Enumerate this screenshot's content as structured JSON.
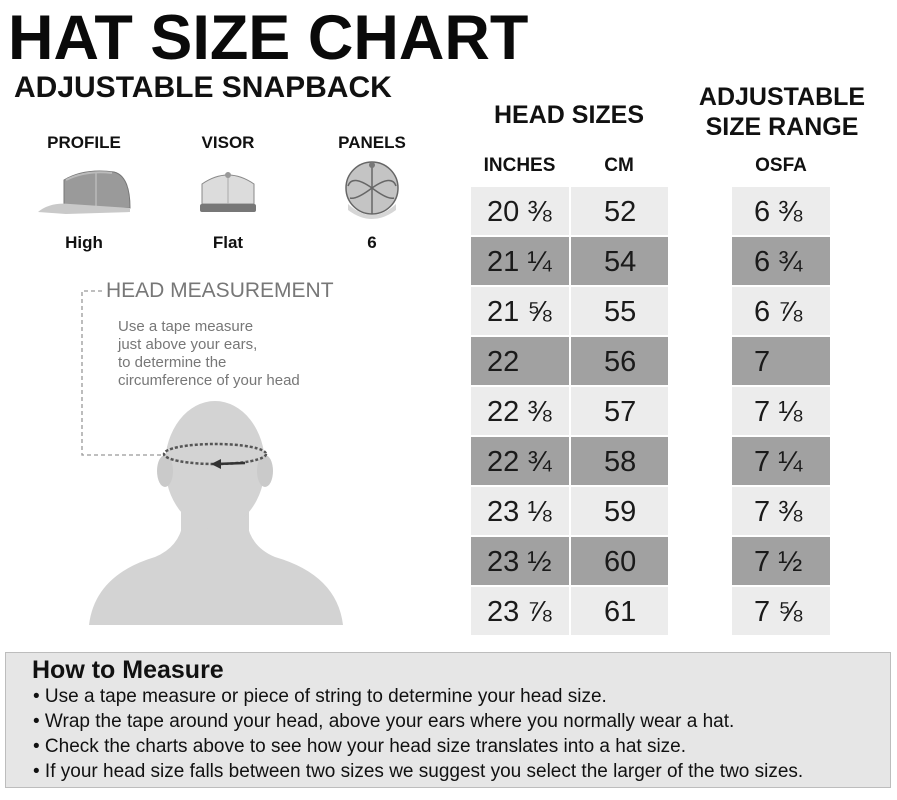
{
  "title": "HAT SIZE CHART",
  "subtitle": "ADJUSTABLE SNAPBACK",
  "features": [
    {
      "label": "PROFILE",
      "value": "High",
      "icon": "high-profile-cap-icon"
    },
    {
      "label": "VISOR",
      "value": "Flat",
      "icon": "flat-visor-cap-icon"
    },
    {
      "label": "PANELS",
      "value": "6",
      "icon": "six-panel-cap-icon"
    }
  ],
  "head_measurement": {
    "label": "HEAD MEASUREMENT",
    "description_lines": [
      "Use a tape measure",
      "just above your ears,",
      "to determine the",
      "circumference of your head"
    ]
  },
  "table": {
    "head_sizes_title": "HEAD SIZES",
    "range_title_line1": "ADJUSTABLE",
    "range_title_line2": "SIZE RANGE",
    "col_inches": "INCHES",
    "col_cm": "CM",
    "col_osfa": "OSFA",
    "rows": [
      {
        "inches": "20 ⅜",
        "cm": "52",
        "osfa": "6 ⅜"
      },
      {
        "inches": "21 ¼",
        "cm": "54",
        "osfa": "6 ¾"
      },
      {
        "inches": "21 ⅝",
        "cm": "55",
        "osfa": "6 ⅞"
      },
      {
        "inches": "22",
        "cm": "56",
        "osfa": "7"
      },
      {
        "inches": "22 ⅜",
        "cm": "57",
        "osfa": "7 ⅛"
      },
      {
        "inches": "22 ¾",
        "cm": "58",
        "osfa": "7 ¼"
      },
      {
        "inches": "23 ⅛",
        "cm": "59",
        "osfa": "7 ⅜"
      },
      {
        "inches": "23 ½",
        "cm": "60",
        "osfa": "7 ½"
      },
      {
        "inches": "23 ⅞",
        "cm": "61",
        "osfa": "7 ⅝"
      }
    ]
  },
  "how_to": {
    "title": "How to Measure",
    "items": [
      "• Use a tape measure or piece of string to determine your head size.",
      "• Wrap the tape around your head, above your ears where you normally wear a hat.",
      "• Check the charts above to see how your head size translates into a hat size.",
      "• If your head size falls between two sizes we suggest you select the larger of the two sizes."
    ]
  },
  "colors": {
    "row_light": "#ececec",
    "row_dark": "#a1a1a1",
    "box_bg": "#e6e6e6",
    "muted_text": "#777777"
  }
}
